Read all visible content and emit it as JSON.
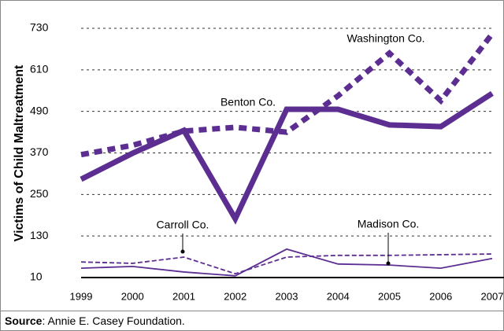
{
  "chart_data": {
    "type": "line",
    "y_label": "Victims of Child Maltreatment",
    "categories": [
      "1999",
      "2000",
      "2001",
      "2002",
      "2003",
      "2004",
      "2005",
      "2006",
      "2007"
    ],
    "series": [
      {
        "name": "Benton Co.",
        "color": "#5c2e91",
        "weight": "thick",
        "line_style": "solid",
        "values": [
          294,
          369,
          435,
          180,
          496,
          496,
          451,
          446,
          542
        ]
      },
      {
        "name": "Washington Co.",
        "color": "#5c2e91",
        "weight": "thick",
        "line_style": "dashed",
        "values": [
          365,
          392,
          433,
          444,
          430,
          535,
          658,
          521,
          714
        ]
      },
      {
        "name": "Carroll Co.",
        "color": "#5c2e91",
        "weight": "thin",
        "line_style": "dashed",
        "values": [
          55,
          51,
          69,
          21,
          69,
          74,
          74,
          76,
          78
        ]
      },
      {
        "name": "Madison Co.",
        "color": "#5c2e91",
        "weight": "thin",
        "line_style": "solid",
        "values": [
          37,
          42,
          26,
          15,
          92,
          49,
          46,
          37,
          65
        ]
      }
    ],
    "ylim": [
      10,
      730
    ],
    "yticks": [
      10,
      130,
      250,
      370,
      490,
      610,
      730
    ],
    "grid": true,
    "source": {
      "label": "Source",
      "text": ": Annie E. Casey Foundation."
    }
  }
}
